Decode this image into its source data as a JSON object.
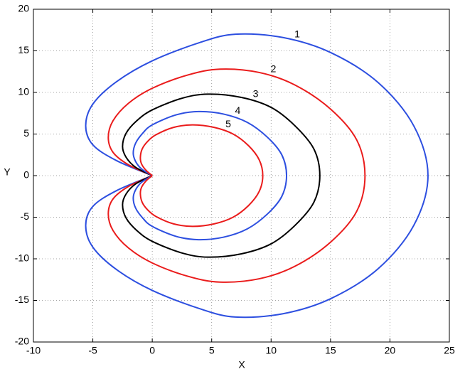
{
  "chart_data": {
    "type": "line",
    "x_label": "X",
    "y_label": "Y",
    "xlim": [
      -10,
      25
    ],
    "xticks": [
      -10,
      -5,
      0,
      5,
      10,
      15,
      20,
      25
    ],
    "ylim": [
      -20,
      20
    ],
    "yticks": [
      -20,
      -15,
      -10,
      -5,
      0,
      5,
      10,
      15,
      20
    ],
    "grid": true,
    "series": [
      {
        "name": "1",
        "color": "#2d4fe0",
        "x": [
          0,
          -3,
          -5,
          -5.6,
          -5,
          -3,
          0,
          4,
          7,
          11,
          15,
          19,
          22,
          23.2,
          22,
          19,
          15,
          11,
          7,
          4,
          0,
          -3,
          -5,
          -5.6,
          -5,
          -3,
          0
        ],
        "values": [
          0,
          1.8,
          3.7,
          6,
          8.6,
          11.3,
          13.8,
          16,
          17,
          16.6,
          14.8,
          11.2,
          6,
          0,
          -6,
          -11.2,
          -14.8,
          -16.6,
          -17,
          -16,
          -13.8,
          -11.3,
          -8.6,
          -6,
          -3.7,
          -1.8,
          0
        ]
      },
      {
        "name": "2",
        "color": "#ea1c1c",
        "x": [
          0,
          -2,
          -3.3,
          -3.7,
          -3.3,
          -2,
          0,
          3,
          5.7,
          9,
          12,
          15,
          17.2,
          17.9,
          17.2,
          15,
          12,
          9,
          5.7,
          3,
          0,
          -2,
          -3.3,
          -3.7,
          -3.3,
          -2,
          0
        ],
        "values": [
          0,
          1.3,
          2.8,
          4.6,
          6.6,
          8.7,
          10.5,
          12.1,
          12.8,
          12.4,
          10.9,
          8,
          4.3,
          0,
          -4.3,
          -8,
          -10.9,
          -12.4,
          -12.8,
          -12.1,
          -10.5,
          -8.7,
          -6.6,
          -4.6,
          -2.8,
          -1.3,
          0
        ]
      },
      {
        "name": "3",
        "color": "#000000",
        "x": [
          0,
          -1.4,
          -2.2,
          -2.5,
          -2.2,
          -1.3,
          0,
          2.5,
          4.7,
          7.5,
          10,
          12,
          13.6,
          14.1,
          13.6,
          12,
          10,
          7.5,
          4.7,
          2.5,
          0,
          -1.3,
          -2.2,
          -2.5,
          -2.2,
          -1.4,
          0
        ],
        "values": [
          0,
          1,
          2.2,
          3.5,
          5.1,
          6.6,
          7.9,
          9.3,
          9.8,
          9.4,
          8.2,
          6,
          3.2,
          0,
          -3.2,
          -6,
          -8.2,
          -9.4,
          -9.8,
          -9.3,
          -7.9,
          -6.6,
          -5.1,
          -3.5,
          -2.2,
          -1,
          0
        ]
      },
      {
        "name": "4",
        "color": "#2d4fe0",
        "x": [
          0,
          -0.9,
          -1.4,
          -1.6,
          -1.4,
          -0.8,
          0,
          2,
          3.9,
          6,
          8,
          9.7,
          10.9,
          11.3,
          10.9,
          9.7,
          8,
          6,
          3.9,
          2,
          0,
          -0.8,
          -1.4,
          -1.6,
          -1.4,
          -0.9,
          0
        ],
        "values": [
          0,
          0.8,
          1.7,
          2.7,
          3.9,
          5.1,
          6.1,
          7.3,
          7.7,
          7.4,
          6.4,
          4.6,
          2.5,
          0,
          -2.5,
          -4.6,
          -6.4,
          -7.4,
          -7.7,
          -7.3,
          -6.1,
          -5.1,
          -3.9,
          -2.7,
          -1.7,
          -0.8,
          0
        ]
      },
      {
        "name": "5",
        "color": "#ea1c1c",
        "x": [
          0,
          -0.5,
          -0.9,
          -1,
          -0.85,
          -0.4,
          0.3,
          1.8,
          3.4,
          5.2,
          6.8,
          8.1,
          9,
          9.3,
          9,
          8.1,
          6.8,
          5.2,
          3.4,
          1.8,
          0.3,
          -0.4,
          -0.85,
          -1,
          -0.9,
          -0.5,
          0
        ],
        "values": [
          0,
          0.6,
          1.4,
          2.2,
          3.2,
          4.1,
          4.9,
          5.8,
          6.1,
          5.8,
          5,
          3.6,
          1.9,
          0,
          -1.9,
          -3.6,
          -5,
          -5.8,
          -6.1,
          -5.8,
          -4.9,
          -4.1,
          -3.2,
          -2.2,
          -1.4,
          -0.6,
          0
        ]
      }
    ]
  }
}
